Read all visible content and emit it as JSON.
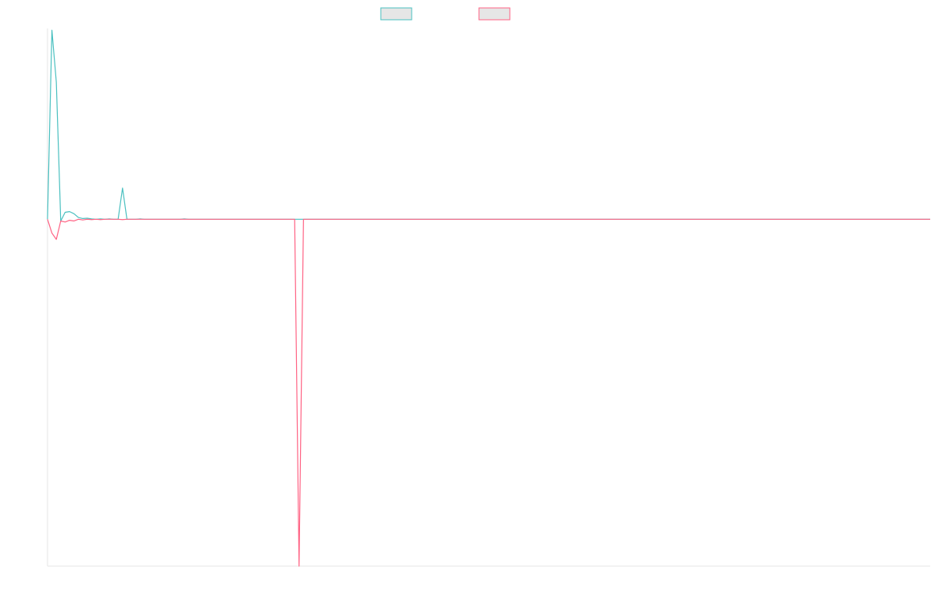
{
  "chart_data": {
    "type": "line",
    "title": "",
    "xlabel": "",
    "ylabel": "",
    "grid": false,
    "legend_position": "top-center",
    "x_count": 201,
    "ylim": [
      -1000,
      550
    ],
    "series": [
      {
        "color": "#4bc0c0",
        "fill": "#e6e6e6",
        "points": [
          [
            0,
            0
          ],
          [
            1,
            545
          ],
          [
            2,
            395
          ],
          [
            3,
            -5
          ],
          [
            4,
            20
          ],
          [
            5,
            22
          ],
          [
            6,
            16
          ],
          [
            7,
            5
          ],
          [
            8,
            2
          ],
          [
            9,
            3
          ],
          [
            10,
            1
          ],
          [
            11,
            0
          ],
          [
            12,
            1
          ],
          [
            13,
            0
          ],
          [
            14,
            1
          ],
          [
            15,
            0
          ],
          [
            16,
            0
          ],
          [
            17,
            90
          ],
          [
            18,
            0
          ],
          [
            19,
            0
          ],
          [
            20,
            0
          ],
          [
            21,
            1
          ],
          [
            22,
            0
          ],
          [
            23,
            0
          ],
          [
            24,
            0
          ],
          [
            25,
            0
          ],
          [
            26,
            0
          ],
          [
            27,
            0
          ],
          [
            28,
            0
          ],
          [
            29,
            0
          ],
          [
            30,
            0
          ],
          [
            31,
            1
          ],
          [
            32,
            0
          ],
          [
            60,
            0
          ],
          [
            200,
            0
          ]
        ]
      },
      {
        "color": "#ff6384",
        "fill": "#e6e6e6",
        "points": [
          [
            0,
            0
          ],
          [
            1,
            -40
          ],
          [
            2,
            -58
          ],
          [
            3,
            -5
          ],
          [
            4,
            -8
          ],
          [
            5,
            -3
          ],
          [
            6,
            -5
          ],
          [
            7,
            0
          ],
          [
            8,
            -2
          ],
          [
            9,
            0
          ],
          [
            10,
            -1
          ],
          [
            11,
            0
          ],
          [
            12,
            -1
          ],
          [
            13,
            0
          ],
          [
            14,
            0
          ],
          [
            15,
            0
          ],
          [
            16,
            0
          ],
          [
            17,
            -1
          ],
          [
            18,
            0
          ],
          [
            20,
            0
          ],
          [
            30,
            0
          ],
          [
            40,
            0
          ],
          [
            56,
            0
          ],
          [
            57,
            -1000
          ],
          [
            58,
            0
          ],
          [
            80,
            0
          ],
          [
            200,
            0
          ]
        ]
      }
    ]
  }
}
